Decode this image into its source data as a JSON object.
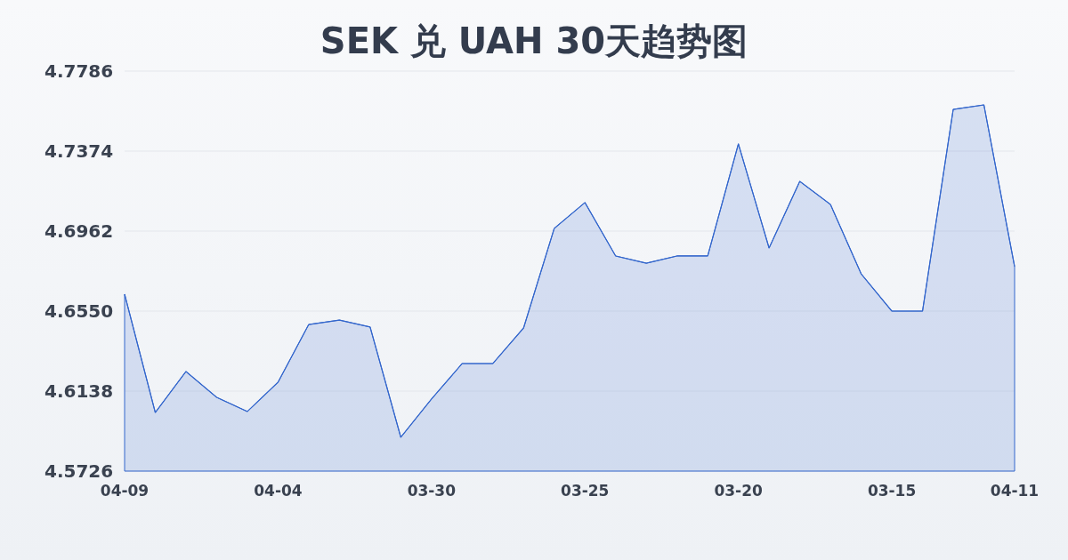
{
  "chart_data": {
    "type": "area",
    "title": "SEK 兑 UAH 30天趋势图",
    "categories": [
      "04-09",
      null,
      null,
      null,
      null,
      "04-04",
      null,
      null,
      null,
      null,
      "03-30",
      null,
      null,
      null,
      null,
      "03-25",
      null,
      null,
      null,
      null,
      "03-20",
      null,
      null,
      null,
      null,
      "03-15",
      null,
      null,
      null,
      "04-11"
    ],
    "values": [
      4.6637,
      4.6028,
      4.6239,
      4.6106,
      4.6033,
      4.6184,
      4.6481,
      4.6504,
      4.6468,
      4.59,
      4.6097,
      4.628,
      4.628,
      4.6463,
      4.6976,
      4.7109,
      4.6834,
      4.6797,
      4.6834,
      4.6834,
      4.7411,
      4.6875,
      4.7218,
      4.7099,
      4.6742,
      4.655,
      4.655,
      4.7589,
      4.7612,
      4.6779
    ],
    "color": "#3366cc",
    "ylim": [
      4.5726,
      4.7786
    ],
    "yticks": [
      4.5726,
      4.6138,
      {
        "value": 4.655,
        "label": "4.6550"
      },
      4.6962,
      4.7374,
      4.7786
    ],
    "grid": "y"
  }
}
